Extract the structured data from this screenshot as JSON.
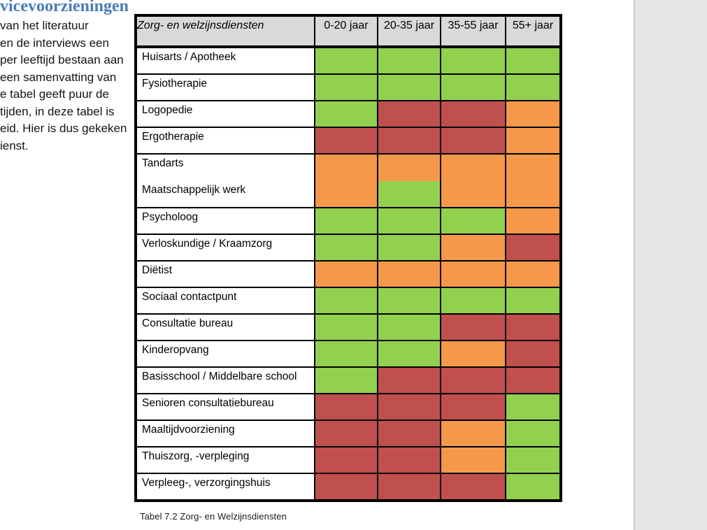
{
  "document": {
    "heading_fragment": "vicevoorzieningen",
    "paragraph_lines": [
      "van het literatuur",
      "en de interviews een",
      "per leeftijd bestaan aan",
      "een samenvatting van",
      "e tabel geeft puur de",
      "tijden, in deze tabel is",
      "eid. Hier is dus gekeken",
      "ienst."
    ],
    "caption": "Tabel 7.2 Zorg- en Welzijnsdiensten"
  },
  "table": {
    "title": "Zorg- en welzijnsdiensten",
    "columns": [
      "0-20 jaar",
      "20-35 jaar",
      "35-55 jaar",
      "55+ jaar"
    ],
    "rows": [
      {
        "label": "Huisarts / Apotheek",
        "cells": [
          "green",
          "green",
          "green",
          "green"
        ]
      },
      {
        "label": "Fysiotherapie",
        "cells": [
          "green",
          "green",
          "green",
          "green"
        ]
      },
      {
        "label": "Logopedie",
        "cells": [
          "green",
          "red",
          "red",
          "orange"
        ]
      },
      {
        "label": "Ergotherapie",
        "cells": [
          "red",
          "red",
          "red",
          "orange"
        ]
      },
      {
        "labels": [
          "Tandarts",
          "Maatschappelijk werk"
        ],
        "double": true,
        "cells": [
          "orange",
          [
            "orange",
            "green"
          ],
          "orange",
          "orange"
        ]
      },
      {
        "label": "Psycholoog",
        "cells": [
          "green",
          "green",
          "green",
          "orange"
        ]
      },
      {
        "label": "Verloskundige / Kraamzorg",
        "cells": [
          "green",
          "green",
          "orange",
          "red"
        ]
      },
      {
        "label": "Diëtist",
        "cells": [
          "orange",
          "orange",
          "orange",
          "orange"
        ]
      },
      {
        "label": "Sociaal contactpunt",
        "cells": [
          "green",
          "green",
          "green",
          "green"
        ]
      },
      {
        "label": "Consultatie bureau",
        "cells": [
          "green",
          "green",
          "red",
          "red"
        ]
      },
      {
        "label": "Kinderopvang",
        "cells": [
          "green",
          "green",
          "orange",
          "red"
        ]
      },
      {
        "label": "Basisschool / Middelbare school",
        "cells": [
          "green",
          "red",
          "red",
          "red"
        ]
      },
      {
        "label": "Senioren consultatiebureau",
        "cells": [
          "red",
          "red",
          "red",
          "green"
        ]
      },
      {
        "label": "Maaltijdvoorziening",
        "cells": [
          "red",
          "red",
          "orange",
          "green"
        ]
      },
      {
        "label": "Thuiszorg, -verpleging",
        "cells": [
          "red",
          "red",
          "orange",
          "green"
        ]
      },
      {
        "label": "Verpleeg-, verzorgingshuis",
        "cells": [
          "red",
          "red",
          "red",
          "green"
        ]
      }
    ]
  },
  "colors": {
    "green": "#92d050",
    "orange": "#f6984a",
    "red": "#c0504d",
    "header_bg": "#d9d9d9",
    "heading_blue": "#4a7cba",
    "page_bg": "#ffffff",
    "gutter_bg": "#e6e6e6"
  }
}
